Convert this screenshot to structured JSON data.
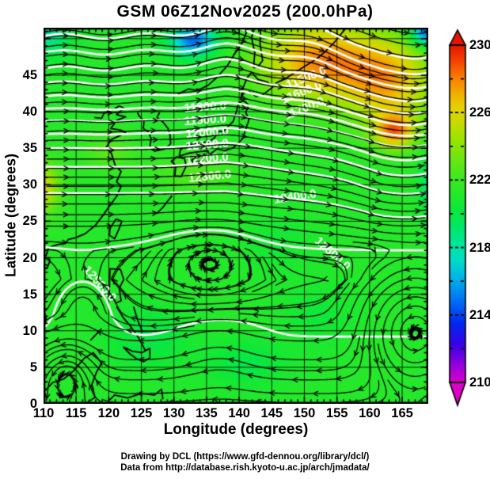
{
  "title": "GSM 06Z12Nov2025 (200.0hPa)",
  "footer": {
    "line1": "Drawing by DCL (https://www.gfd-dennou.org/library/dcl/)",
    "line2": "Data from http://database.rish.kyoto-u.ac.jp/arch/jmadata/"
  },
  "chart_data": {
    "type": "streamline_contour_map",
    "title": "GSM 06Z12Nov2025 (200.0hPa)",
    "xlabel": "Longitude (degrees)",
    "ylabel": "Latitude  (degrees)",
    "xlim": [
      110,
      169
    ],
    "ylim": [
      0,
      51.5
    ],
    "x_ticks": [
      110,
      115,
      120,
      125,
      130,
      135,
      140,
      145,
      150,
      155,
      160,
      165
    ],
    "y_ticks": [
      0,
      5,
      10,
      15,
      20,
      25,
      30,
      35,
      40,
      45
    ],
    "grid_step": 5,
    "colorbar": {
      "range": [
        210,
        230
      ],
      "label_ticks": [
        230,
        226,
        222,
        218,
        214,
        210
      ],
      "minor_step": 2,
      "over_color": "#e61400",
      "under_color": "#dc00c8",
      "stops": [
        [
          210,
          "#dc00c8"
        ],
        [
          211,
          "#9600dc"
        ],
        [
          212.2,
          "#3c00e6"
        ],
        [
          213.5,
          "#0028f0"
        ],
        [
          215,
          "#0078f5"
        ],
        [
          216.2,
          "#00b4e8"
        ],
        [
          217.2,
          "#00dcc8"
        ],
        [
          218.2,
          "#00e69b"
        ],
        [
          219.3,
          "#00e862"
        ],
        [
          220.3,
          "#0ce83c"
        ],
        [
          221.3,
          "#28e828"
        ],
        [
          222.3,
          "#46e81e"
        ],
        [
          223.3,
          "#6ee60f"
        ],
        [
          224.3,
          "#96e400"
        ],
        [
          225.3,
          "#c3dc00"
        ],
        [
          226.3,
          "#e6d200"
        ],
        [
          227,
          "#f0b400"
        ],
        [
          228,
          "#fa8200"
        ],
        [
          229,
          "#f54600"
        ],
        [
          230,
          "#e61400"
        ]
      ]
    },
    "temperature_field": {
      "base_K": 221.2,
      "blobs": [
        [
          152,
          47,
          9,
          5.5,
          6.5
        ],
        [
          163,
          44,
          7,
          6,
          5.5
        ],
        [
          163.8,
          37.3,
          3.2,
          2.4,
          6
        ],
        [
          168.5,
          50.8,
          2.2,
          1.8,
          -7
        ],
        [
          133,
          49.8,
          3.5,
          2.2,
          -6.5
        ],
        [
          110,
          50.5,
          4,
          2.8,
          -3.2
        ],
        [
          109.5,
          29.5,
          3,
          3.5,
          4.8
        ],
        [
          169.8,
          30,
          1.8,
          4,
          -3.5
        ],
        [
          133,
          31.5,
          7,
          2.5,
          1.4
        ],
        [
          120,
          34.5,
          4,
          2.5,
          1.6
        ],
        [
          126,
          9,
          6,
          4,
          -1.3
        ],
        [
          141,
          5.5,
          6,
          3,
          -1.3
        ],
        [
          152,
          12,
          5,
          4,
          -0.8
        ],
        [
          146,
          22,
          5,
          4,
          -0.6
        ]
      ]
    },
    "contours": {
      "interval": 100,
      "level_min": 11300,
      "level_max": 12500,
      "base_profile": [
        [
          0,
          12480
        ],
        [
          6,
          12492
        ],
        [
          12,
          12507
        ],
        [
          17,
          12515
        ],
        [
          21,
          12505
        ],
        [
          24,
          12478
        ],
        [
          26.5,
          12445
        ],
        [
          28.5,
          12408
        ],
        [
          30.5,
          12360
        ],
        [
          32,
          12315
        ],
        [
          33.5,
          12262
        ],
        [
          35,
          12200
        ],
        [
          36.3,
          12135
        ],
        [
          37.5,
          12068
        ],
        [
          38.7,
          12000
        ],
        [
          39.8,
          11935
        ],
        [
          41,
          11862
        ],
        [
          42.5,
          11778
        ],
        [
          44,
          11695
        ],
        [
          45.8,
          11605
        ],
        [
          47.8,
          11515
        ],
        [
          49.5,
          11435
        ],
        [
          51.5,
          11350
        ]
      ],
      "ne_slope": {
        "lon0": 138,
        "cap": 24,
        "k": 3.8,
        "lat0": 20,
        "lat_span": 20
      },
      "trough": {
        "lon": 165.5,
        "w": 8,
        "amp": 150,
        "lat0": 22,
        "lat_span": 16
      },
      "ridge": {
        "lon": 139,
        "w": 8,
        "amp": 45,
        "lat0": 28,
        "lat_span": 10
      },
      "high": {
        "lon": 135.5,
        "lat": 20,
        "wlon": 8,
        "wlat": 5,
        "amp": 35
      },
      "low": {
        "lon": 137,
        "lat": 6,
        "wlon": 6,
        "wlat": 5,
        "amp": -25
      },
      "low2": {
        "lon": 116,
        "lat": 14,
        "wlon": 5,
        "wlat": 6,
        "amp": -18
      },
      "nw_wave": {
        "k": 0.5,
        "amp": 14,
        "lat0": 34,
        "lat_span": 12
      },
      "labels": [
        {
          "text": "11500.0",
          "lon": 150.3,
          "lat": 44.6,
          "deg": -22
        },
        {
          "text": "11600.0",
          "lon": 149.6,
          "lat": 42.6,
          "deg": -22
        },
        {
          "text": "11700.0",
          "lon": 150.0,
          "lat": 40.4,
          "deg": -22
        },
        {
          "text": "11800.0",
          "lon": 134.8,
          "lat": 40.6,
          "deg": -4
        },
        {
          "text": "11900.0",
          "lon": 134.8,
          "lat": 38.8,
          "deg": -4
        },
        {
          "text": "12000.0",
          "lon": 135.1,
          "lat": 37.1,
          "deg": -4
        },
        {
          "text": "12100.0",
          "lon": 135.1,
          "lat": 35.4,
          "deg": -4
        },
        {
          "text": "12200.0",
          "lon": 135.1,
          "lat": 33.5,
          "deg": -5
        },
        {
          "text": "12300.0",
          "lon": 135.5,
          "lat": 31.1,
          "deg": -6
        },
        {
          "text": "12400.0",
          "lon": 148.6,
          "lat": 28.3,
          "deg": -8
        },
        {
          "text": "12500.0",
          "lon": 118.6,
          "lat": 16.4,
          "deg": 48
        },
        {
          "text": "12500.0",
          "lon": 154.3,
          "lat": 20.5,
          "deg": 42
        }
      ]
    },
    "wind": {
      "geostrophic_scale": 0.02,
      "min_f": 0.25,
      "easterly_south": {
        "lat_start": 13,
        "width": 9,
        "speed": 1.2
      },
      "vortices": [
        {
          "lon": 167,
          "lat": 10,
          "r": 6,
          "s": 2.0,
          "dir": 1
        },
        {
          "lon": 113.5,
          "lat": 4,
          "r": 4,
          "s": 1.2,
          "dir": 1
        }
      ]
    },
    "colors": {
      "contour": "#ffffff",
      "streamline": "#000000",
      "coast": "#000000",
      "grid": "#000000",
      "frame": "#000000"
    },
    "coastlines": [
      [
        [
          130.8,
          33.9
        ],
        [
          132.2,
          34.3
        ],
        [
          133.6,
          34.5
        ],
        [
          135.2,
          34.65
        ],
        [
          135.4,
          34.1
        ],
        [
          136.6,
          34.9
        ],
        [
          137.8,
          34.65
        ],
        [
          139.1,
          35.05
        ],
        [
          139.9,
          35.7
        ],
        [
          140.6,
          36.4
        ],
        [
          141.0,
          37.6
        ],
        [
          141.5,
          38.9
        ],
        [
          141.0,
          39.9
        ],
        [
          141.5,
          40.9
        ],
        [
          140.7,
          41.5
        ],
        [
          139.9,
          41.2
        ],
        [
          139.6,
          40.1
        ],
        [
          139.1,
          38.7
        ],
        [
          137.6,
          37.3
        ],
        [
          136.8,
          37.3
        ],
        [
          136.2,
          36.4
        ],
        [
          135.4,
          35.9
        ],
        [
          133.9,
          35.7
        ],
        [
          132.3,
          35.5
        ],
        [
          131.0,
          34.8
        ],
        [
          130.8,
          33.9
        ]
      ],
      [
        [
          130.1,
          31.2
        ],
        [
          130.3,
          32.6
        ],
        [
          129.6,
          33.2
        ],
        [
          130.4,
          33.8
        ],
        [
          131.6,
          33.6
        ],
        [
          131.9,
          32.6
        ],
        [
          131.1,
          31.1
        ],
        [
          130.1,
          31.2
        ]
      ],
      [
        [
          132.7,
          33.4
        ],
        [
          133.6,
          33.9
        ],
        [
          134.7,
          34.2
        ],
        [
          134.3,
          33.3
        ],
        [
          133.0,
          33.0
        ],
        [
          132.7,
          33.4
        ]
      ],
      [
        [
          140.2,
          41.6
        ],
        [
          140.7,
          42.6
        ],
        [
          141.7,
          42.7
        ],
        [
          142.6,
          42.1
        ],
        [
          143.6,
          42.3
        ],
        [
          145.2,
          43.4
        ],
        [
          144.2,
          44.1
        ],
        [
          142.9,
          44.4
        ],
        [
          141.9,
          45.4
        ],
        [
          141.2,
          44.6
        ],
        [
          140.6,
          43.3
        ],
        [
          140.2,
          41.6
        ]
      ],
      [
        [
          142.2,
          46.0
        ],
        [
          142.4,
          48.0
        ],
        [
          141.9,
          50.2
        ],
        [
          142.4,
          51.5
        ],
        [
          143.3,
          51.5
        ],
        [
          143.2,
          49.3
        ],
        [
          143.6,
          47.0
        ],
        [
          142.9,
          46.2
        ],
        [
          142.2,
          46.0
        ]
      ],
      [
        [
          130.6,
          42.4
        ],
        [
          132.2,
          43.1
        ],
        [
          133.6,
          42.9
        ],
        [
          135.2,
          43.6
        ],
        [
          136.6,
          44.7
        ],
        [
          138.2,
          46.3
        ],
        [
          139.2,
          47.8
        ],
        [
          140.4,
          49.3
        ],
        [
          141.1,
          50.8
        ],
        [
          141.4,
          51.5
        ]
      ],
      [
        [
          127.8,
          39.9
        ],
        [
          127.4,
          39.2
        ],
        [
          128.3,
          38.6
        ],
        [
          129.1,
          37.7
        ],
        [
          129.4,
          36.8
        ],
        [
          129.5,
          35.6
        ],
        [
          128.6,
          34.9
        ],
        [
          127.0,
          34.6
        ],
        [
          126.3,
          35.1
        ],
        [
          126.5,
          36.3
        ],
        [
          126.1,
          37.2
        ],
        [
          125.3,
          37.7
        ],
        [
          125.4,
          38.7
        ],
        [
          124.6,
          39.5
        ],
        [
          124.4,
          39.9
        ]
      ],
      [
        [
          121.6,
          40.8
        ],
        [
          122.3,
          40.5
        ],
        [
          121.2,
          39.6
        ],
        [
          122.6,
          39.3
        ],
        [
          121.2,
          38.8
        ],
        [
          120.3,
          37.7
        ],
        [
          121.7,
          37.5
        ],
        [
          122.6,
          37.2
        ],
        [
          121.9,
          36.8
        ],
        [
          120.4,
          36.2
        ],
        [
          119.6,
          35.1
        ],
        [
          120.4,
          34.3
        ],
        [
          121.0,
          32.6
        ],
        [
          121.9,
          31.8
        ],
        [
          121.2,
          30.4
        ],
        [
          121.9,
          29.8
        ],
        [
          121.2,
          28.4
        ],
        [
          120.2,
          27.2
        ],
        [
          119.2,
          25.9
        ],
        [
          117.9,
          24.4
        ],
        [
          116.4,
          23.3
        ],
        [
          114.8,
          22.7
        ],
        [
          113.8,
          22.5
        ],
        [
          113.4,
          22.0
        ],
        [
          112.2,
          21.8
        ],
        [
          110.8,
          21.4
        ],
        [
          110.4,
          20.3
        ],
        [
          110.0,
          20.3
        ]
      ],
      [
        [
          117.8,
          39.2
        ],
        [
          118.9,
          39.1
        ],
        [
          119.3,
          39.8
        ],
        [
          120.9,
          40.4
        ],
        [
          121.6,
          40.8
        ]
      ],
      [
        [
          121.1,
          25.3
        ],
        [
          122.0,
          25.0
        ],
        [
          121.6,
          24.0
        ],
        [
          120.9,
          22.6
        ],
        [
          120.1,
          23.1
        ],
        [
          120.2,
          24.0
        ],
        [
          121.1,
          25.3
        ]
      ],
      [
        [
          110.0,
          20.0
        ],
        [
          110.7,
          20.0
        ],
        [
          111.0,
          19.6
        ],
        [
          110.5,
          18.5
        ],
        [
          109.6,
          18.9
        ],
        [
          109.5,
          19.7
        ],
        [
          110.0,
          20.0
        ]
      ],
      [
        [
          110.0,
          12.9
        ],
        [
          110.4,
          11.8
        ],
        [
          110.2,
          10.4
        ],
        [
          110.0,
          10.0
        ]
      ],
      [
        [
          120.1,
          16.0
        ],
        [
          120.2,
          18.5
        ],
        [
          121.8,
          18.4
        ],
        [
          122.3,
          17.0
        ],
        [
          121.6,
          15.8
        ],
        [
          121.9,
          14.1
        ],
        [
          121.1,
          13.8
        ],
        [
          120.7,
          14.5
        ],
        [
          120.0,
          14.6
        ],
        [
          120.1,
          16.0
        ]
      ],
      [
        [
          121.2,
          13.3
        ],
        [
          122.3,
          11.7
        ],
        [
          123.2,
          10.8
        ],
        [
          124.6,
          9.0
        ],
        [
          125.6,
          7.3
        ]
      ],
      [
        [
          123.8,
          13.3
        ],
        [
          124.5,
          11.3
        ],
        [
          125.2,
          9.8
        ]
      ],
      [
        [
          117.2,
          8.7
        ],
        [
          118.9,
          10.3
        ]
      ],
      [
        [
          122.2,
          7.8
        ],
        [
          123.6,
          7.2
        ],
        [
          125.1,
          7.0
        ],
        [
          126.3,
          7.6
        ],
        [
          126.3,
          6.3
        ],
        [
          125.4,
          5.8
        ],
        [
          124.2,
          6.2
        ],
        [
          123.3,
          6.8
        ],
        [
          122.2,
          7.8
        ]
      ],
      [
        [
          110.0,
          1.6
        ],
        [
          111.4,
          2.9
        ],
        [
          113.1,
          3.4
        ],
        [
          114.6,
          4.5
        ],
        [
          116.2,
          6.2
        ],
        [
          117.6,
          7.0
        ],
        [
          118.9,
          5.6
        ],
        [
          118.1,
          4.3
        ],
        [
          117.4,
          2.6
        ],
        [
          117.9,
          0.9
        ],
        [
          116.6,
          0.1
        ]
      ],
      [
        [
          120.1,
          0.5
        ],
        [
          120.9,
          1.2
        ],
        [
          122.9,
          0.8
        ],
        [
          124.9,
          1.4
        ],
        [
          127.0,
          1.2
        ],
        [
          128.1,
          2.0
        ],
        [
          128.3,
          0.6
        ]
      ],
      [
        [
          145.6,
          43.9
        ],
        [
          147.2,
          44.6
        ],
        [
          148.8,
          45.5
        ],
        [
          150.4,
          46.4
        ],
        [
          152.0,
          47.3
        ],
        [
          153.4,
          48.4
        ],
        [
          154.6,
          49.5
        ],
        [
          155.6,
          50.6
        ],
        [
          156.4,
          51.5
        ]
      ],
      [
        [
          129.7,
          28.5
        ],
        [
          128.3,
          26.9
        ],
        [
          127.4,
          26.1
        ],
        [
          126.8,
          26.3
        ]
      ]
    ]
  }
}
